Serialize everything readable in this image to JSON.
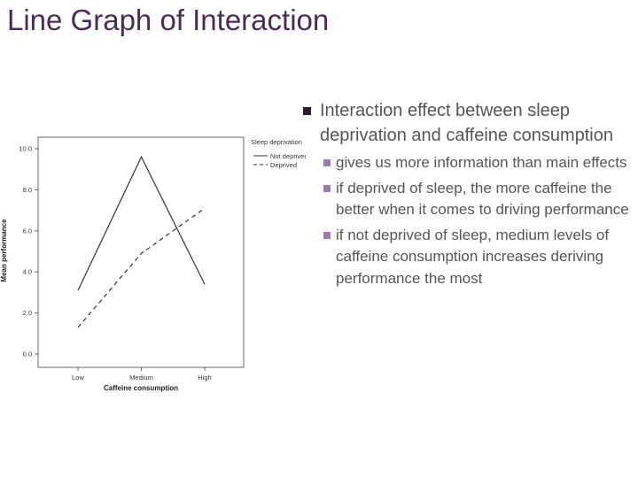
{
  "slide": {
    "title": "Line Graph of Interaction"
  },
  "bullets": {
    "main": "Interaction effect between sleep deprivation and caffeine consumption",
    "sub": [
      "gives us more information than main effects",
      "if deprived of sleep, the more caffeine the better when it comes to driving performance",
      "if not deprived of sleep, medium levels of caffeine consumption increases deriving performance the most"
    ]
  },
  "colors": {
    "title": "#4b2c55",
    "main_bullet": "#2b1f33",
    "sub_bullet": "#9e7ab0",
    "text": "#555555",
    "chart_line": "#333333"
  },
  "chart_data": {
    "type": "line",
    "xlabel": "Caffeine consumption",
    "ylabel": "Mean performance",
    "categories": [
      "Low",
      "Medium",
      "High"
    ],
    "ylim": [
      0,
      10
    ],
    "yticks": [
      "0.0",
      "2.0",
      "4.0",
      "6.0",
      "8.0",
      "10.0"
    ],
    "legend_title": "Sleep deprivation",
    "legend_position": "top-right",
    "grid": false,
    "series": [
      {
        "name": "Not deprived",
        "style": "solid",
        "values": [
          3.1,
          9.6,
          3.4
        ]
      },
      {
        "name": "Deprived",
        "style": "dashed",
        "values": [
          1.3,
          4.9,
          7.1
        ]
      }
    ]
  }
}
